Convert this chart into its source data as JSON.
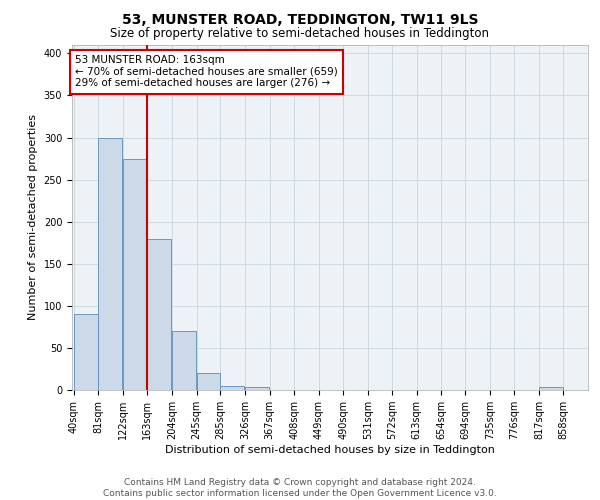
{
  "title1": "53, MUNSTER ROAD, TEDDINGTON, TW11 9LS",
  "title2": "Size of property relative to semi-detached houses in Teddington",
  "xlabel": "Distribution of semi-detached houses by size in Teddington",
  "ylabel": "Number of semi-detached properties",
  "bins": [
    40,
    81,
    122,
    163,
    204,
    245,
    285,
    326,
    367,
    408,
    449,
    490,
    531,
    572,
    613,
    654,
    694,
    735,
    776,
    817,
    858
  ],
  "bin_labels": [
    "40sqm",
    "81sqm",
    "122sqm",
    "163sqm",
    "204sqm",
    "245sqm",
    "285sqm",
    "326sqm",
    "367sqm",
    "408sqm",
    "449sqm",
    "490sqm",
    "531sqm",
    "572sqm",
    "613sqm",
    "654sqm",
    "694sqm",
    "735sqm",
    "776sqm",
    "817sqm",
    "858sqm"
  ],
  "counts": [
    90,
    300,
    275,
    180,
    70,
    20,
    5,
    4,
    0,
    0,
    0,
    0,
    0,
    0,
    0,
    0,
    0,
    0,
    0,
    3,
    0
  ],
  "bar_color": "#ccd9e8",
  "bar_edge_color": "#5b8db8",
  "property_size": 163,
  "vline_color": "#cc0000",
  "annotation_text": "53 MUNSTER ROAD: 163sqm\n← 70% of semi-detached houses are smaller (659)\n29% of semi-detached houses are larger (276) →",
  "annotation_box_color": "#ffffff",
  "annotation_box_edge": "#cc0000",
  "ylim": [
    0,
    410
  ],
  "yticks": [
    0,
    50,
    100,
    150,
    200,
    250,
    300,
    350,
    400
  ],
  "grid_color": "#d0d8e0",
  "background_color": "#edf2f7",
  "footer_text": "Contains HM Land Registry data © Crown copyright and database right 2024.\nContains public sector information licensed under the Open Government Licence v3.0.",
  "title1_fontsize": 10,
  "title2_fontsize": 8.5,
  "xlabel_fontsize": 8,
  "ylabel_fontsize": 8,
  "tick_fontsize": 7,
  "annotation_fontsize": 7.5,
  "footer_fontsize": 6.5
}
